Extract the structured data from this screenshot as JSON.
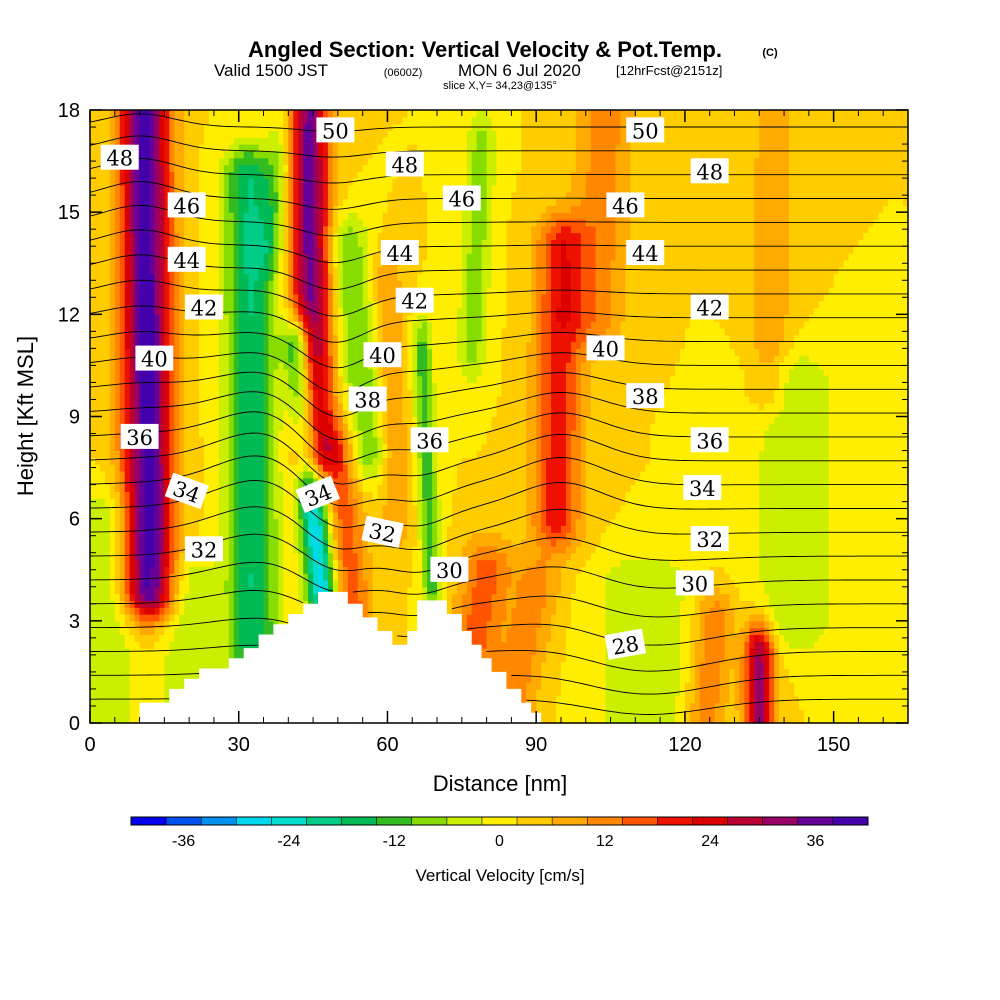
{
  "header": {
    "title": "Angled Section: Vertical Velocity & Pot.Temp.",
    "title_mark": "(C)",
    "valid_prefix": "Valid 1500 JST",
    "valid_utc": "(0600Z)",
    "valid_date": "MON 6 Jul 2020",
    "forecast": "[12hrFcst@2151z]",
    "slice": "slice X,Y= 34,23@135°"
  },
  "chart_data": {
    "type": "heatmap",
    "xlabel": "Distance [nm]",
    "ylabel": "Height [Kft MSL]",
    "xlim": [
      0,
      165
    ],
    "ylim": [
      0,
      18
    ],
    "xticks": [
      0,
      30,
      60,
      90,
      120,
      150
    ],
    "yticks": [
      0,
      3,
      6,
      9,
      12,
      15,
      18
    ],
    "grid": false,
    "colorbar": {
      "label": "Vertical Velocity [cm/s]",
      "range": [
        -42,
        42
      ],
      "step": 4,
      "ticks": [
        -36,
        -24,
        -12,
        0,
        12,
        24,
        36
      ],
      "colors": [
        "#0000ee",
        "#0050ee",
        "#0090ee",
        "#00d8f0",
        "#00ddcc",
        "#00cc88",
        "#00bb55",
        "#33bb22",
        "#88dd00",
        "#ccee00",
        "#ffee00",
        "#ffcc00",
        "#ffaa00",
        "#ff8800",
        "#ff5500",
        "#ee1100",
        "#dd0000",
        "#bb0033",
        "#990066",
        "#660099",
        "#4400aa"
      ]
    },
    "vertical_velocity_field": {
      "units": "cm/s",
      "background": 2,
      "features": [
        {
          "x": [
            12,
            11
          ],
          "y": [
            4,
            18
          ],
          "peak": 38,
          "halfwidth": 5
        },
        {
          "x": [
            45,
            44
          ],
          "y": [
            8,
            18
          ],
          "peak": 34,
          "halfwidth": 4
        },
        {
          "x": [
            33,
            32
          ],
          "y": [
            2,
            16
          ],
          "peak": -20,
          "halfwidth": 5
        },
        {
          "x": [
            47,
            42
          ],
          "y": [
            3.5,
            11
          ],
          "peak": -30,
          "halfwidth": 3
        },
        {
          "x": [
            53,
            50
          ],
          "y": [
            3.5,
            8
          ],
          "peak": 14,
          "halfwidth": 4
        },
        {
          "x": [
            56,
            52
          ],
          "y": [
            8,
            14
          ],
          "peak": -12,
          "halfwidth": 4
        },
        {
          "x": [
            62,
            60
          ],
          "y": [
            6,
            13
          ],
          "peak": 8,
          "halfwidth": 3
        },
        {
          "x": [
            69,
            67
          ],
          "y": [
            4,
            11
          ],
          "peak": -14,
          "halfwidth": 2
        },
        {
          "x": [
            77,
            79
          ],
          "y": [
            11,
            17
          ],
          "peak": -10,
          "halfwidth": 3
        },
        {
          "x": [
            75,
            80
          ],
          "y": [
            0.5,
            4.5
          ],
          "peak": 14,
          "halfwidth": 5
        },
        {
          "x": [
            94,
            95
          ],
          "y": [
            6,
            14
          ],
          "peak": 18,
          "halfwidth": 5
        },
        {
          "x": [
            85,
            90
          ],
          "y": [
            0.5,
            4
          ],
          "peak": 10,
          "halfwidth": 5
        },
        {
          "x": [
            112,
            112
          ],
          "y": [
            0,
            4
          ],
          "peak": -8,
          "halfwidth": 10
        },
        {
          "x": [
            142,
            142
          ],
          "y": [
            3,
            10
          ],
          "peak": -8,
          "halfwidth": 8
        },
        {
          "x": [
            135,
            135
          ],
          "y": [
            0,
            2
          ],
          "peak": 30,
          "halfwidth": 3
        },
        {
          "x": [
            124,
            126
          ],
          "y": [
            0,
            3
          ],
          "peak": 12,
          "halfwidth": 4
        },
        {
          "x": [
            102,
            104
          ],
          "y": [
            12,
            18
          ],
          "peak": 10,
          "halfwidth": 6
        },
        {
          "x": [
            137,
            138
          ],
          "y": [
            10,
            18
          ],
          "peak": 8,
          "halfwidth": 4
        },
        {
          "x": [
            4,
            3
          ],
          "y": [
            0.5,
            6
          ],
          "peak": -8,
          "halfwidth": 5
        },
        {
          "x": [
            20,
            20
          ],
          "y": [
            0.5,
            4
          ],
          "peak": -8,
          "halfwidth": 6
        },
        {
          "x": [
            36,
            40
          ],
          "y": [
            14,
            18
          ],
          "peak": -8,
          "halfwidth": 3
        }
      ]
    },
    "potential_temperature_contours": {
      "units": "C",
      "levels": [
        24,
        25,
        26,
        27,
        28,
        29,
        30,
        31,
        32,
        33,
        34,
        35,
        36,
        37,
        38,
        39,
        40,
        41,
        42,
        43,
        44,
        45,
        46,
        47,
        48,
        49,
        50
      ],
      "labels": [
        {
          "text": "48",
          "x": 6,
          "y": 16.6,
          "angle": 0
        },
        {
          "text": "46",
          "x": 19.5,
          "y": 15.2,
          "angle": 0
        },
        {
          "text": "44",
          "x": 19.5,
          "y": 13.6,
          "angle": 0
        },
        {
          "text": "42",
          "x": 23,
          "y": 12.2,
          "angle": 0
        },
        {
          "text": "40",
          "x": 13,
          "y": 10.7,
          "angle": 0
        },
        {
          "text": "36",
          "x": 10,
          "y": 8.4,
          "angle": 0
        },
        {
          "text": "34",
          "x": 19.5,
          "y": 6.8,
          "angle": 20
        },
        {
          "text": "32",
          "x": 23,
          "y": 5.1,
          "angle": 0
        },
        {
          "text": "50",
          "x": 49.5,
          "y": 17.4,
          "angle": 0
        },
        {
          "text": "48",
          "x": 63.5,
          "y": 16.4,
          "angle": 0
        },
        {
          "text": "46",
          "x": 75,
          "y": 15.4,
          "angle": 0
        },
        {
          "text": "44",
          "x": 62.5,
          "y": 13.8,
          "angle": 0
        },
        {
          "text": "42",
          "x": 65.5,
          "y": 12.4,
          "angle": 0
        },
        {
          "text": "40",
          "x": 59,
          "y": 10.8,
          "angle": 0
        },
        {
          "text": "38",
          "x": 56,
          "y": 9.5,
          "angle": 0
        },
        {
          "text": "36",
          "x": 68.5,
          "y": 8.3,
          "angle": 0
        },
        {
          "text": "34",
          "x": 46,
          "y": 6.7,
          "angle": -22
        },
        {
          "text": "32",
          "x": 59,
          "y": 5.6,
          "angle": 12
        },
        {
          "text": "30",
          "x": 72.5,
          "y": 4.5,
          "angle": 0
        },
        {
          "text": "50",
          "x": 112,
          "y": 17.4,
          "angle": 0
        },
        {
          "text": "48",
          "x": 125,
          "y": 16.2,
          "angle": 0
        },
        {
          "text": "46",
          "x": 108,
          "y": 15.2,
          "angle": 0
        },
        {
          "text": "44",
          "x": 112,
          "y": 13.8,
          "angle": 0
        },
        {
          "text": "42",
          "x": 125,
          "y": 12.2,
          "angle": 0
        },
        {
          "text": "40",
          "x": 104,
          "y": 11.0,
          "angle": 0
        },
        {
          "text": "38",
          "x": 112,
          "y": 9.6,
          "angle": 0
        },
        {
          "text": "36",
          "x": 125,
          "y": 8.3,
          "angle": 0
        },
        {
          "text": "34",
          "x": 123.5,
          "y": 6.9,
          "angle": 0
        },
        {
          "text": "32",
          "x": 125,
          "y": 5.4,
          "angle": 0
        },
        {
          "text": "30",
          "x": 122,
          "y": 4.1,
          "angle": 0
        },
        {
          "text": "28",
          "x": 108,
          "y": 2.3,
          "angle": -10
        }
      ]
    },
    "terrain": {
      "color": "#ffffff",
      "profile": [
        [
          0,
          0
        ],
        [
          10,
          0
        ],
        [
          10,
          0.6
        ],
        [
          16,
          0.6
        ],
        [
          16,
          1.0
        ],
        [
          19,
          1.0
        ],
        [
          19,
          1.3
        ],
        [
          22,
          1.3
        ],
        [
          22,
          1.6
        ],
        [
          28,
          1.6
        ],
        [
          28,
          1.9
        ],
        [
          31,
          1.9
        ],
        [
          31,
          2.2
        ],
        [
          34,
          2.2
        ],
        [
          34,
          2.6
        ],
        [
          37,
          2.6
        ],
        [
          37,
          2.9
        ],
        [
          40,
          2.9
        ],
        [
          40,
          3.2
        ],
        [
          43,
          3.2
        ],
        [
          43,
          3.5
        ],
        [
          46,
          3.5
        ],
        [
          46,
          3.85
        ],
        [
          52,
          3.85
        ],
        [
          52,
          3.5
        ],
        [
          55,
          3.5
        ],
        [
          55,
          3.1
        ],
        [
          58,
          3.1
        ],
        [
          58,
          2.7
        ],
        [
          61,
          2.7
        ],
        [
          61,
          2.3
        ],
        [
          64,
          2.3
        ],
        [
          64,
          2.7
        ],
        [
          66,
          2.7
        ],
        [
          66,
          3.6
        ],
        [
          72,
          3.6
        ],
        [
          72,
          3.2
        ],
        [
          75,
          3.2
        ],
        [
          75,
          2.7
        ],
        [
          77,
          2.7
        ],
        [
          77,
          2.3
        ],
        [
          79,
          2.3
        ],
        [
          79,
          1.9
        ],
        [
          81,
          1.9
        ],
        [
          81,
          1.5
        ],
        [
          84,
          1.5
        ],
        [
          84,
          1.0
        ],
        [
          87,
          1.0
        ],
        [
          87,
          0.6
        ],
        [
          89,
          0.6
        ],
        [
          89,
          0.3
        ],
        [
          91,
          0.3
        ],
        [
          91,
          0
        ],
        [
          165,
          0
        ]
      ]
    }
  }
}
